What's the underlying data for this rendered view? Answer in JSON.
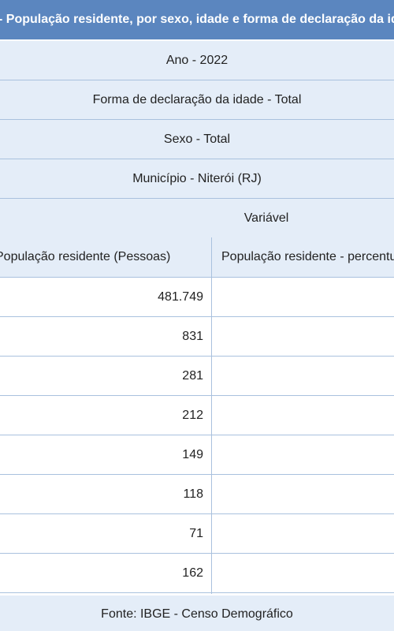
{
  "table": {
    "title": "- População residente, por sexo, idade e forma de declaração da idade",
    "meta": {
      "ano": "Ano - 2022",
      "forma": "Forma de declaração da idade - Total",
      "sexo": "Sexo - Total",
      "municipio": "Município - Niterói (RJ)",
      "variavel": "Variável"
    },
    "columns": {
      "col1": "População residente (Pessoas)",
      "col2": "População residente - percentual"
    },
    "rows": [
      {
        "value": "481.749"
      },
      {
        "value": "831"
      },
      {
        "value": "281"
      },
      {
        "value": "212"
      },
      {
        "value": "149"
      },
      {
        "value": "118"
      },
      {
        "value": "71"
      },
      {
        "value": "162"
      }
    ],
    "footer": "Fonte: IBGE - Censo Demográfico"
  },
  "colors": {
    "header_blue": "#5b86bf",
    "row_light_blue": "#e4edf8",
    "border": "#a9c1de"
  }
}
